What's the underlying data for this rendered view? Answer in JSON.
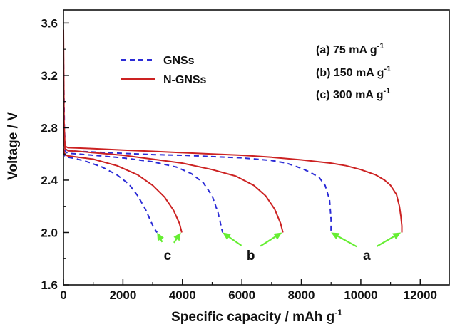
{
  "chart_data": {
    "type": "line",
    "xlabel": "Specific capacity / mAh g",
    "xlabel_sup": "-1",
    "ylabel": "Voltage / V",
    "xlim": [
      0,
      13000
    ],
    "ylim": [
      1.6,
      3.7
    ],
    "xticks": [
      "0",
      "2000",
      "4000",
      "6000",
      "8000",
      "10000",
      "12000"
    ],
    "xtick_values": [
      0,
      2000,
      4000,
      6000,
      8000,
      10000,
      12000
    ],
    "yticks": [
      "1.6",
      "2.0",
      "2.4",
      "2.8",
      "3.2",
      "3.6"
    ],
    "ytick_values": [
      1.6,
      2.0,
      2.4,
      2.8,
      3.2,
      3.6
    ],
    "grid": false,
    "legend": {
      "placement": "top-left",
      "entries": [
        {
          "name": "GNSs",
          "color": "#2b2bd6",
          "dash": "dashed"
        },
        {
          "name": "N-GNSs",
          "color": "#cc2222",
          "dash": "solid"
        }
      ]
    },
    "conditions": [
      {
        "text": "(a) 75 mA g",
        "sup": "-1"
      },
      {
        "text": "(b) 150 mA g",
        "sup": "-1"
      },
      {
        "text": "(c) 300 mA g",
        "sup": "-1"
      }
    ],
    "annotations": [
      {
        "label": "a",
        "anchor": [
          10200,
          1.85
        ],
        "targets": [
          [
            9000,
            2.0
          ],
          [
            11350,
            2.0
          ]
        ]
      },
      {
        "label": "b",
        "anchor": [
          6300,
          1.85
        ],
        "targets": [
          [
            5350,
            2.0
          ],
          [
            7350,
            2.0
          ]
        ]
      },
      {
        "label": "c",
        "anchor": [
          3500,
          1.85
        ],
        "targets": [
          [
            3150,
            2.0
          ],
          [
            3950,
            2.0
          ]
        ]
      }
    ],
    "annotation_color": "#66ee33",
    "series": [
      {
        "name": "GNSs",
        "label": "a",
        "color": "#2b2bd6",
        "dash": "dashed",
        "x": [
          0,
          30,
          60,
          150,
          500,
          1000,
          2000,
          3000,
          4000,
          5000,
          6000,
          7000,
          7500,
          8000,
          8300,
          8600,
          8800,
          8950,
          9000,
          9000
        ],
        "y": [
          3.35,
          2.8,
          2.64,
          2.625,
          2.62,
          2.615,
          2.605,
          2.595,
          2.59,
          2.58,
          2.57,
          2.55,
          2.53,
          2.49,
          2.46,
          2.42,
          2.36,
          2.25,
          2.1,
          2.0
        ]
      },
      {
        "name": "N-GNSs",
        "label": "a",
        "color": "#cc2222",
        "dash": "solid",
        "x": [
          0,
          20,
          50,
          150,
          500,
          1000,
          2000,
          3000,
          4000,
          5000,
          6000,
          7000,
          8000,
          9000,
          9500,
          10000,
          10500,
          10800,
          11000,
          11200,
          11300,
          11350,
          11380,
          11380
        ],
        "y": [
          3.55,
          2.85,
          2.66,
          2.648,
          2.645,
          2.64,
          2.63,
          2.62,
          2.61,
          2.6,
          2.59,
          2.575,
          2.555,
          2.53,
          2.51,
          2.48,
          2.44,
          2.4,
          2.36,
          2.29,
          2.2,
          2.12,
          2.05,
          2.0
        ]
      },
      {
        "name": "GNSs",
        "label": "b",
        "color": "#2b2bd6",
        "dash": "dashed",
        "x": [
          0,
          50,
          150,
          500,
          1000,
          2000,
          3000,
          3800,
          4300,
          4700,
          5000,
          5200,
          5300,
          5350
        ],
        "y": [
          2.7,
          2.62,
          2.605,
          2.6,
          2.59,
          2.57,
          2.54,
          2.5,
          2.45,
          2.38,
          2.28,
          2.15,
          2.05,
          2.0
        ]
      },
      {
        "name": "N-GNSs",
        "label": "b",
        "color": "#cc2222",
        "dash": "solid",
        "x": [
          0,
          50,
          150,
          500,
          1000,
          2000,
          3000,
          4000,
          5000,
          5800,
          6400,
          6800,
          7100,
          7300,
          7380
        ],
        "y": [
          2.75,
          2.64,
          2.625,
          2.62,
          2.61,
          2.59,
          2.56,
          2.53,
          2.48,
          2.43,
          2.36,
          2.28,
          2.18,
          2.07,
          2.0
        ]
      },
      {
        "name": "GNSs",
        "label": "c",
        "color": "#2b2bd6",
        "dash": "dashed",
        "x": [
          0,
          50,
          150,
          400,
          800,
          1300,
          1800,
          2200,
          2500,
          2750,
          2950,
          3050,
          3150
        ],
        "y": [
          2.62,
          2.585,
          2.575,
          2.565,
          2.54,
          2.5,
          2.44,
          2.37,
          2.28,
          2.18,
          2.08,
          2.03,
          2.0
        ]
      },
      {
        "name": "N-GNSs",
        "label": "c",
        "color": "#cc2222",
        "dash": "solid",
        "x": [
          0,
          50,
          150,
          500,
          1000,
          1800,
          2500,
          3000,
          3400,
          3700,
          3900,
          3980
        ],
        "y": [
          2.64,
          2.595,
          2.585,
          2.575,
          2.56,
          2.51,
          2.44,
          2.36,
          2.27,
          2.17,
          2.07,
          2.0
        ]
      }
    ]
  }
}
